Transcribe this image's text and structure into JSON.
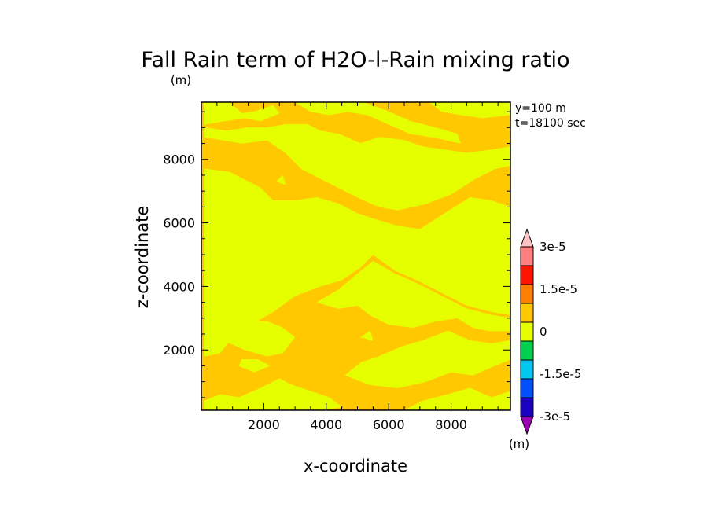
{
  "chart_data": {
    "type": "heatmap",
    "title": "Fall Rain term of H2O-l-Rain mixing ratio",
    "units": "(m)",
    "annotation_lines": [
      "y=100 m",
      "t=18100 sec"
    ],
    "xlabel": "x-coordinate",
    "ylabel": "z-coordinate",
    "xlim": [
      0,
      9900
    ],
    "ylim": [
      100,
      9800
    ],
    "x_ticks": [
      2000,
      4000,
      6000,
      8000
    ],
    "y_ticks": [
      2000,
      4000,
      6000,
      8000
    ],
    "x_tick_labels": [
      "2000",
      "4000",
      "6000",
      "8000"
    ],
    "y_tick_labels": [
      "2000",
      "4000",
      "6000",
      "8000"
    ],
    "colorbar": {
      "label": "(m)",
      "levels": [
        -3e-05,
        -2.25e-05,
        -1.5e-05,
        -7.5e-06,
        0,
        7.5e-06,
        1.5e-05,
        2.25e-05,
        3e-05
      ],
      "tick_labels": [
        "-3e-5",
        "-1.5e-5",
        "0",
        "1.5e-5",
        "3e-5"
      ],
      "tick_values": [
        -3e-05,
        -1.5e-05,
        0,
        1.5e-05,
        3e-05
      ],
      "colors": [
        "#9c00b0",
        "#1c00c0",
        "#0050ff",
        "#00c8f0",
        "#00d050",
        "#e6ff00",
        "#ffc800",
        "#ff8000",
        "#ff1400",
        "#ff8080",
        "#ffc4c4"
      ]
    },
    "field": {
      "background_class": "0 to 7.5e-6",
      "background_color": "#ffc800",
      "region_class": "-7.5e-6 to 0",
      "region_color": "#e6ff00",
      "regions": [
        [
          [
            100,
            9800
          ],
          [
            900,
            9800
          ],
          [
            1300,
            9450
          ],
          [
            1700,
            9500
          ],
          [
            2300,
            9700
          ],
          [
            2500,
            9450
          ],
          [
            1900,
            9200
          ],
          [
            1400,
            9300
          ],
          [
            700,
            9200
          ],
          [
            100,
            9100
          ]
        ],
        [
          [
            3000,
            9800
          ],
          [
            5200,
            9800
          ],
          [
            6000,
            9500
          ],
          [
            6700,
            9200
          ],
          [
            7500,
            9000
          ],
          [
            8200,
            8800
          ],
          [
            8300,
            8500
          ],
          [
            7400,
            8700
          ],
          [
            6700,
            8800
          ],
          [
            6000,
            9100
          ],
          [
            5300,
            9400
          ],
          [
            4700,
            9500
          ],
          [
            4100,
            9400
          ],
          [
            3500,
            9500
          ]
        ],
        [
          [
            7300,
            9800
          ],
          [
            9900,
            9800
          ],
          [
            9900,
            9400
          ],
          [
            9000,
            9300
          ],
          [
            8300,
            9400
          ],
          [
            7700,
            9500
          ]
        ],
        [
          [
            100,
            8700
          ],
          [
            700,
            8600
          ],
          [
            1300,
            8500
          ],
          [
            2100,
            8600
          ],
          [
            2700,
            8200
          ],
          [
            3200,
            7700
          ],
          [
            3800,
            7400
          ],
          [
            4400,
            7100
          ],
          [
            5000,
            6800
          ],
          [
            5700,
            6500
          ],
          [
            6300,
            6400
          ],
          [
            7200,
            6600
          ],
          [
            8000,
            6900
          ],
          [
            8800,
            7400
          ],
          [
            9400,
            7700
          ],
          [
            9900,
            7800
          ],
          [
            9900,
            8400
          ],
          [
            9300,
            8300
          ],
          [
            8500,
            8200
          ],
          [
            7800,
            8300
          ],
          [
            7100,
            8400
          ],
          [
            6500,
            8600
          ],
          [
            5700,
            8700
          ],
          [
            5100,
            8500
          ],
          [
            4400,
            8800
          ],
          [
            3800,
            8900
          ],
          [
            3400,
            9100
          ],
          [
            2700,
            9100
          ],
          [
            2100,
            9000
          ],
          [
            1500,
            9000
          ],
          [
            800,
            8900
          ],
          [
            100,
            9000
          ]
        ],
        [
          [
            100,
            7700
          ],
          [
            100,
            1800
          ],
          [
            600,
            1900
          ],
          [
            1000,
            2400
          ],
          [
            1600,
            2800
          ],
          [
            2300,
            3200
          ],
          [
            3000,
            3700
          ],
          [
            3800,
            4000
          ],
          [
            4500,
            4200
          ],
          [
            5100,
            4600
          ],
          [
            5500,
            5000
          ],
          [
            6200,
            4500
          ],
          [
            6900,
            4200
          ],
          [
            7700,
            3800
          ],
          [
            8500,
            3400
          ],
          [
            9300,
            3200
          ],
          [
            9900,
            3100
          ],
          [
            9900,
            6500
          ],
          [
            9300,
            6700
          ],
          [
            8600,
            6800
          ],
          [
            7800,
            6300
          ],
          [
            7000,
            5800
          ],
          [
            6300,
            5900
          ],
          [
            5600,
            6100
          ],
          [
            5000,
            6300
          ],
          [
            4400,
            6600
          ],
          [
            3700,
            6800
          ],
          [
            3000,
            6700
          ],
          [
            2300,
            6700
          ],
          [
            1900,
            7100
          ],
          [
            1500,
            7300
          ],
          [
            900,
            7600
          ]
        ],
        [
          [
            4800,
            5800
          ],
          [
            5700,
            5800
          ],
          [
            6400,
            5300
          ],
          [
            6900,
            5000
          ],
          [
            7500,
            4800
          ],
          [
            8200,
            4700
          ],
          [
            8700,
            4900
          ],
          [
            9100,
            5100
          ],
          [
            9400,
            5600
          ],
          [
            9000,
            6000
          ],
          [
            8600,
            6200
          ],
          [
            8100,
            6100
          ],
          [
            7500,
            5800
          ],
          [
            6800,
            5600
          ],
          [
            6100,
            5700
          ],
          [
            5500,
            5800
          ]
        ],
        [
          [
            700,
            2300
          ],
          [
            1400,
            2000
          ],
          [
            2100,
            1800
          ],
          [
            2600,
            1900
          ],
          [
            3000,
            2400
          ],
          [
            2600,
            2700
          ],
          [
            2100,
            2900
          ],
          [
            1600,
            2900
          ],
          [
            1100,
            2700
          ]
        ],
        [
          [
            3700,
            3500
          ],
          [
            4400,
            3300
          ],
          [
            5000,
            3400
          ],
          [
            5400,
            3100
          ],
          [
            6000,
            2800
          ],
          [
            6800,
            2700
          ],
          [
            7500,
            2900
          ],
          [
            8200,
            3000
          ],
          [
            8700,
            2700
          ],
          [
            9200,
            2600
          ],
          [
            9900,
            2600
          ],
          [
            9900,
            3000
          ],
          [
            9300,
            3100
          ],
          [
            8500,
            3300
          ],
          [
            7700,
            3700
          ],
          [
            6900,
            4100
          ],
          [
            6200,
            4400
          ],
          [
            5500,
            4800
          ],
          [
            5000,
            4400
          ],
          [
            4400,
            3900
          ]
        ],
        [
          [
            4600,
            1200
          ],
          [
            5400,
            900
          ],
          [
            6300,
            800
          ],
          [
            7200,
            1000
          ],
          [
            8000,
            1300
          ],
          [
            8700,
            1200
          ],
          [
            9400,
            1500
          ],
          [
            9900,
            1700
          ],
          [
            9900,
            2300
          ],
          [
            9300,
            2200
          ],
          [
            8600,
            2300
          ],
          [
            7900,
            2600
          ],
          [
            7100,
            2300
          ],
          [
            6400,
            2100
          ],
          [
            5700,
            1800
          ],
          [
            5100,
            1600
          ]
        ],
        [
          [
            100,
            400
          ],
          [
            600,
            600
          ],
          [
            1200,
            500
          ],
          [
            1900,
            800
          ],
          [
            2500,
            1100
          ],
          [
            2900,
            900
          ],
          [
            3500,
            700
          ],
          [
            4100,
            500
          ],
          [
            4500,
            200
          ],
          [
            3800,
            100
          ],
          [
            2500,
            100
          ],
          [
            1200,
            100
          ],
          [
            100,
            100
          ]
        ],
        [
          [
            6500,
            100
          ],
          [
            9900,
            100
          ],
          [
            9900,
            700
          ],
          [
            9300,
            500
          ],
          [
            8600,
            800
          ],
          [
            7900,
            600
          ],
          [
            7100,
            400
          ]
        ],
        [
          [
            1200,
            1500
          ],
          [
            1700,
            1300
          ],
          [
            2200,
            1500
          ],
          [
            1800,
            1700
          ],
          [
            1300,
            1700
          ]
        ],
        [
          [
            2900,
            5600
          ],
          [
            3600,
            5700
          ],
          [
            4300,
            5900
          ],
          [
            3800,
            6200
          ],
          [
            3200,
            6000
          ]
        ],
        [
          [
            600,
            9500
          ],
          [
            800,
            9400
          ],
          [
            900,
            9600
          ]
        ],
        [
          [
            2400,
            7300
          ],
          [
            2700,
            7200
          ],
          [
            2600,
            7500
          ]
        ],
        [
          [
            5100,
            2400
          ],
          [
            5500,
            2300
          ],
          [
            5400,
            2600
          ]
        ],
        [
          [
            8200,
            4200
          ],
          [
            8600,
            4100
          ],
          [
            8500,
            4400
          ]
        ]
      ]
    }
  }
}
